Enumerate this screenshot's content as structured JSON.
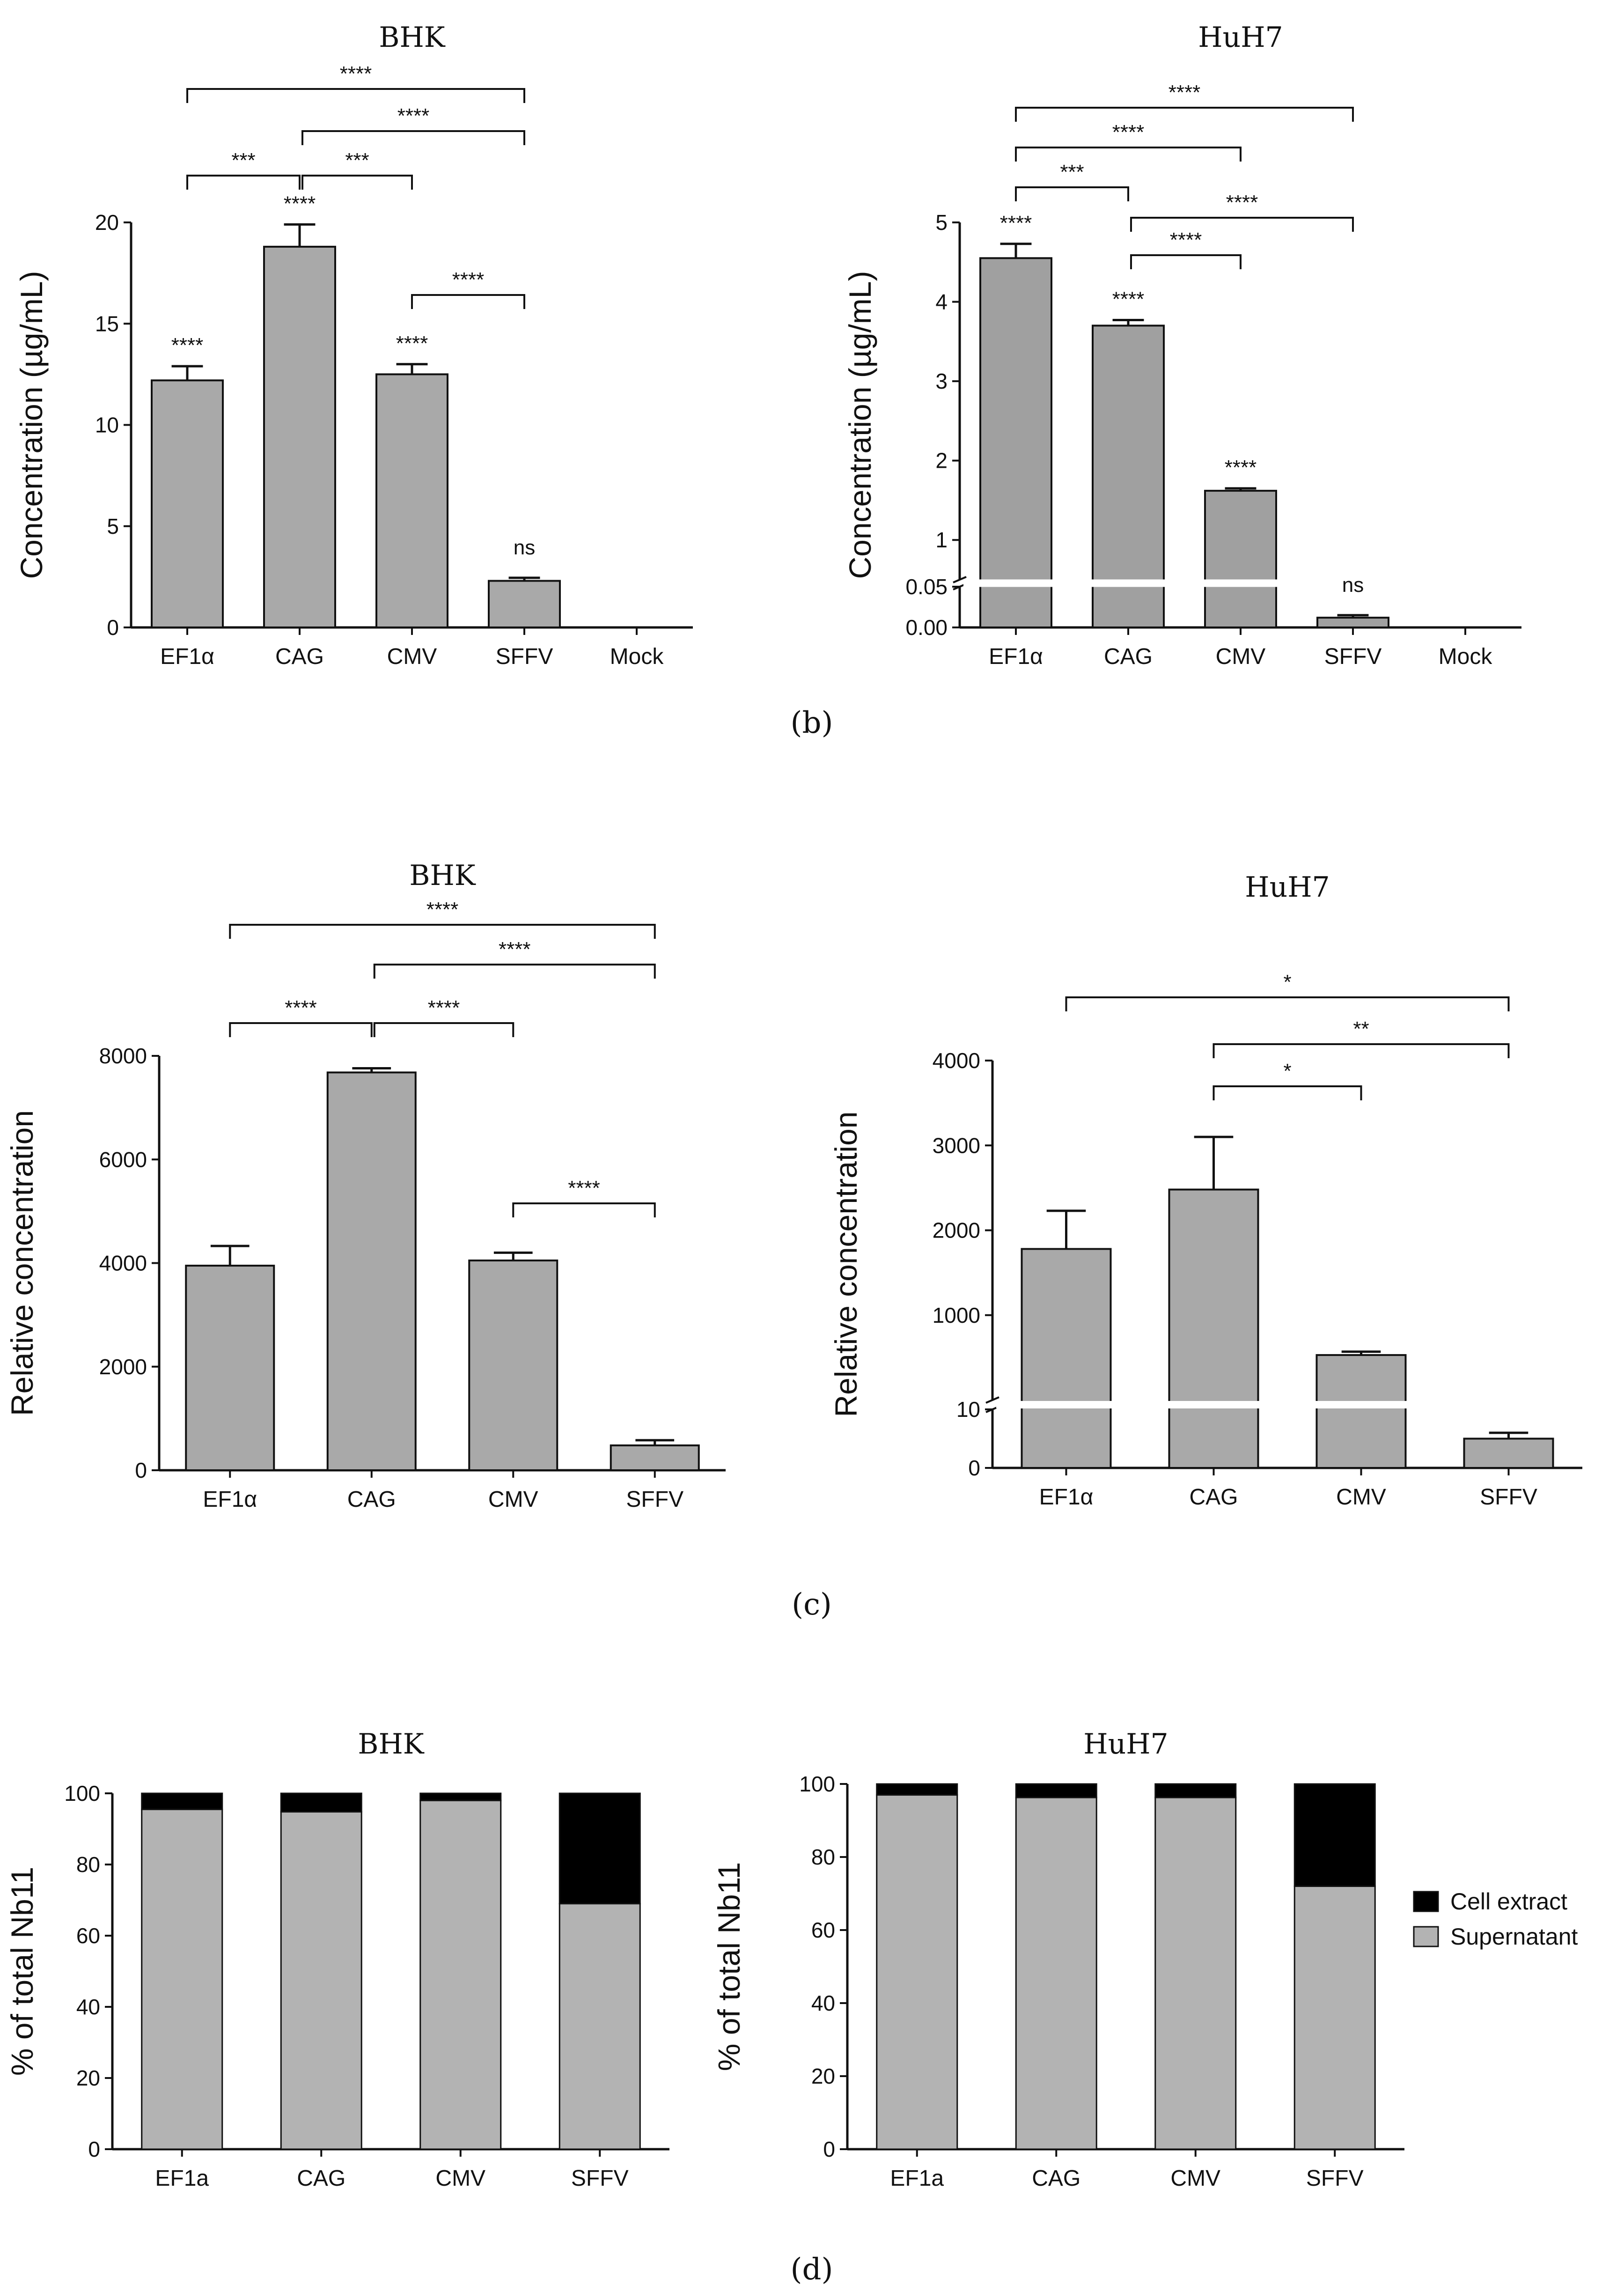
{
  "figure": {
    "panel_labels": [
      "(b)",
      "(c)",
      "(d)"
    ]
  },
  "colors": {
    "bar_gray": "#a9a9a9",
    "bar_dark_gray": "#a0a0a0",
    "cell_extract": "#000000",
    "supernatant": "#b3b3b3"
  },
  "chart_data": [
    {
      "id": "b_bhk",
      "type": "bar",
      "title": "BHK",
      "xlabel": "",
      "ylabel": "Concentration (µg/mL)",
      "categories": [
        "EF1α",
        "CAG",
        "CMV",
        "SFFV",
        "Mock"
      ],
      "values": [
        12.2,
        18.8,
        12.5,
        2.3,
        0
      ],
      "errors": [
        0.7,
        1.1,
        0.5,
        0.15,
        0
      ],
      "ylim": [
        0,
        20
      ],
      "yticks": [
        "0",
        "5",
        "10",
        "15",
        "20"
      ],
      "bar_labels": [
        "****",
        "****",
        "****",
        "ns",
        ""
      ],
      "comparisons": [
        {
          "from": 0,
          "to": 1,
          "label": "***"
        },
        {
          "from": 1,
          "to": 2,
          "label": "***"
        },
        {
          "from": 1,
          "to": 3,
          "label": "****"
        },
        {
          "from": 0,
          "to": 3,
          "label": "****"
        },
        {
          "from": 2,
          "to": 3,
          "label": "****"
        }
      ]
    },
    {
      "id": "b_huh7",
      "type": "bar",
      "title": "HuH7",
      "xlabel": "",
      "ylabel": "Concentration (µg/mL)",
      "categories": [
        "EF1α",
        "CAG",
        "CMV",
        "SFFV",
        "Mock"
      ],
      "values": [
        4.55,
        3.7,
        1.62,
        0.012,
        0
      ],
      "errors": [
        0.18,
        0.07,
        0.03,
        0.003,
        0
      ],
      "axis_break": {
        "lower": [
          0,
          0.05
        ],
        "upper": [
          0.5,
          5
        ]
      },
      "yticks": [
        "0.00",
        "0.05",
        "1",
        "2",
        "3",
        "4",
        "5"
      ],
      "bar_labels": [
        "****",
        "****",
        "****",
        "ns",
        ""
      ],
      "comparisons": [
        {
          "from": 0,
          "to": 1,
          "label": "***"
        },
        {
          "from": 0,
          "to": 2,
          "label": "****"
        },
        {
          "from": 0,
          "to": 3,
          "label": "****"
        },
        {
          "from": 1,
          "to": 2,
          "label": "****"
        },
        {
          "from": 1,
          "to": 3,
          "label": "****"
        }
      ]
    },
    {
      "id": "c_bhk",
      "type": "bar",
      "title": "BHK",
      "xlabel": "",
      "ylabel": "Relative concentration",
      "categories": [
        "EF1α",
        "CAG",
        "CMV",
        "SFFV"
      ],
      "values": [
        3950,
        7680,
        4050,
        480
      ],
      "errors": [
        380,
        80,
        150,
        100
      ],
      "ylim": [
        0,
        8000
      ],
      "yticks": [
        "0",
        "2000",
        "4000",
        "6000",
        "8000"
      ],
      "comparisons": [
        {
          "from": 0,
          "to": 1,
          "label": "****"
        },
        {
          "from": 1,
          "to": 2,
          "label": "****"
        },
        {
          "from": 1,
          "to": 3,
          "label": "****"
        },
        {
          "from": 0,
          "to": 3,
          "label": "****"
        },
        {
          "from": 2,
          "to": 3,
          "label": "****"
        }
      ]
    },
    {
      "id": "c_huh7",
      "type": "bar",
      "title": "HuH7",
      "xlabel": "",
      "ylabel": "Relative concentration",
      "categories": [
        "EF1α",
        "CAG",
        "CMV",
        "SFFV"
      ],
      "values": [
        1780,
        2480,
        530,
        5
      ],
      "errors": [
        450,
        620,
        40,
        1
      ],
      "axis_break": {
        "lower": [
          0,
          10
        ],
        "upper": [
          0,
          4000
        ]
      },
      "yticks": [
        "0",
        "10",
        "1000",
        "2000",
        "3000",
        "4000"
      ],
      "comparisons": [
        {
          "from": 0,
          "to": 3,
          "label": "*"
        },
        {
          "from": 1,
          "to": 3,
          "label": "**"
        },
        {
          "from": 1,
          "to": 2,
          "label": "*"
        }
      ]
    },
    {
      "id": "d_bhk",
      "type": "bar",
      "stacked": true,
      "title": "BHK",
      "xlabel": "",
      "ylabel": "% of total Nb11",
      "categories": [
        "EF1a",
        "CAG",
        "CMV",
        "SFFV"
      ],
      "series": [
        {
          "name": "Supernatant",
          "values": [
            95.5,
            94.8,
            98,
            69
          ]
        },
        {
          "name": "Cell extract",
          "values": [
            4.5,
            5.2,
            2,
            31
          ]
        }
      ],
      "ylim": [
        0,
        100
      ],
      "yticks": [
        "0",
        "20",
        "40",
        "60",
        "80",
        "100"
      ]
    },
    {
      "id": "d_huh7",
      "type": "bar",
      "stacked": true,
      "title": "HuH7",
      "xlabel": "",
      "ylabel": "% of total Nb11",
      "categories": [
        "EF1a",
        "CAG",
        "CMV",
        "SFFV"
      ],
      "series": [
        {
          "name": "Supernatant",
          "values": [
            97,
            96.3,
            96.3,
            72
          ]
        },
        {
          "name": "Cell extract",
          "values": [
            3,
            3.7,
            3.7,
            28
          ]
        }
      ],
      "ylim": [
        0,
        100
      ],
      "yticks": [
        "0",
        "20",
        "40",
        "60",
        "80",
        "100"
      ],
      "legend": [
        "Cell extract",
        "Supernatant"
      ],
      "legend_position": "right"
    }
  ]
}
